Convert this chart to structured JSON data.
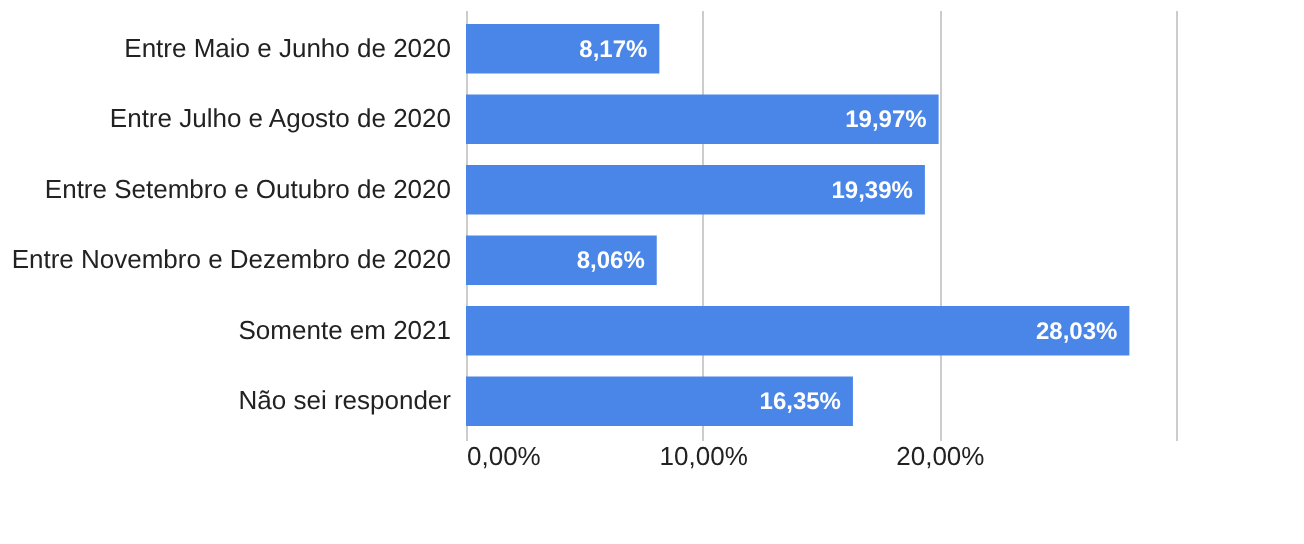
{
  "chart_data": {
    "type": "bar",
    "orientation": "horizontal",
    "categories": [
      "Entre Maio e Junho de 2020",
      "Entre Julho e Agosto de 2020",
      "Entre Setembro e Outubro de 2020",
      "Entre Novembro e Dezembro de 2020",
      "Somente em 2021",
      "Não sei responder"
    ],
    "values": [
      8.17,
      19.97,
      19.39,
      8.06,
      28.03,
      16.35
    ],
    "value_labels": [
      "8,17%",
      "19,97%",
      "19,39%",
      "8,06%",
      "28,03%",
      "16,35%"
    ],
    "color": "#4a86e8",
    "xlim": [
      0,
      30
    ],
    "xticks": [
      {
        "value": 0,
        "label": "0,00%"
      },
      {
        "value": 10,
        "label": "10,00%"
      },
      {
        "value": 20,
        "label": "20,00%"
      },
      {
        "value": 30,
        "label": null
      }
    ],
    "grid": "x"
  }
}
